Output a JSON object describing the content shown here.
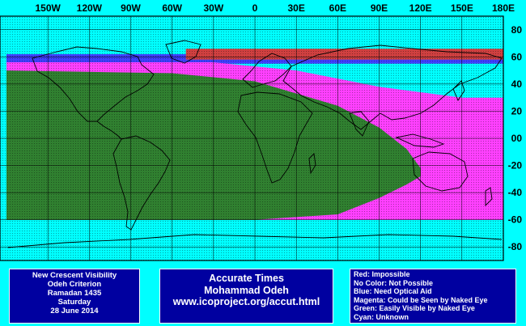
{
  "map": {
    "longitude_labels": [
      "150W",
      "120W",
      "90W",
      "60W",
      "30W",
      "0",
      "30E",
      "60E",
      "90E",
      "120E",
      "150E",
      "180E"
    ],
    "longitude_values": [
      -150,
      -120,
      -90,
      -60,
      -30,
      0,
      30,
      60,
      90,
      120,
      150,
      180
    ],
    "latitude_labels": [
      "80",
      "60",
      "40",
      "20",
      "00",
      "-20",
      "-40",
      "-60",
      "-80"
    ],
    "latitude_values": [
      80,
      60,
      40,
      20,
      0,
      -20,
      -40,
      -60,
      -80
    ],
    "zones": {
      "red": {
        "color": "#d04040",
        "lat_top": 66,
        "lat_bottom": 58,
        "lon_start": -50,
        "lon_end": 180
      },
      "blue": {
        "color": "#4040ff",
        "lat_top": 62,
        "lat_bottom": 55,
        "lon_start": -180,
        "lon_end": 180
      },
      "magenta_nodes": [
        {
          "lon": -180,
          "top": 56,
          "bottom": -60
        },
        {
          "lon": -30,
          "top": 56,
          "bottom": -60
        },
        {
          "lon": 30,
          "top": 50,
          "bottom": -60
        },
        {
          "lon": 90,
          "top": 38,
          "bottom": -60
        },
        {
          "lon": 120,
          "top": 34,
          "bottom": -60
        },
        {
          "lon": 150,
          "top": 30,
          "bottom": -60
        },
        {
          "lon": 180,
          "top": 30,
          "bottom": -60
        }
      ],
      "green_nodes": [
        {
          "lon": -180,
          "top": 50,
          "bottom": -60
        },
        {
          "lon": -60,
          "top": 48,
          "bottom": -60
        },
        {
          "lon": 0,
          "top": 42,
          "bottom": -60
        },
        {
          "lon": 60,
          "top": 24,
          "bottom": -56
        },
        {
          "lon": 90,
          "top": 8,
          "bottom": -44
        },
        {
          "lon": 110,
          "top": -8,
          "bottom": -34
        },
        {
          "lon": 120,
          "top": -22,
          "bottom": -28
        }
      ],
      "colors": {
        "magenta": "#ff40ff",
        "green": "#308030",
        "grid": "#000000",
        "background": "#00ffff"
      }
    }
  },
  "legend_left": {
    "lines": [
      "New Crescent Visibility",
      "Odeh Criterion",
      "Ramadan 1435",
      "Saturday",
      "28 June 2014"
    ]
  },
  "legend_mid": {
    "lines": [
      "Accurate Times",
      "Mohammad Odeh",
      "www.icoproject.org/accut.html"
    ]
  },
  "legend_right": {
    "lines": [
      "Red: Impossible",
      "No Color: Not Possible",
      "Blue: Need Optical Aid",
      "Magenta: Could be Seen by Naked Eye",
      "Green: Easily Visible by Naked Eye",
      "Cyan: Unknown"
    ]
  }
}
